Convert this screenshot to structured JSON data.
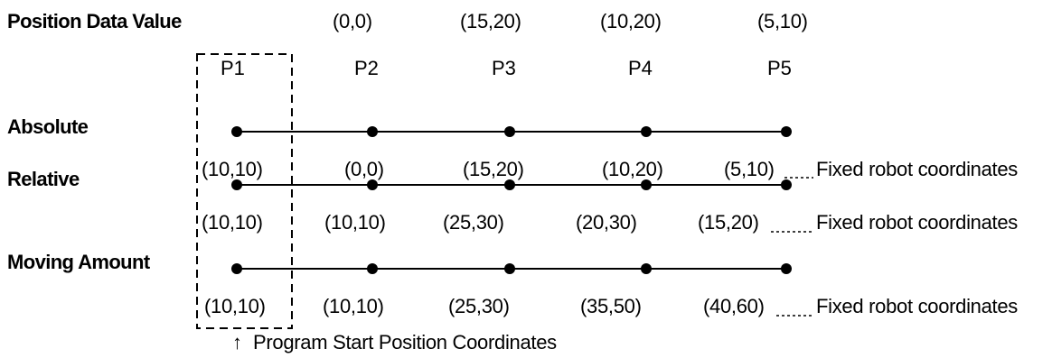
{
  "header": {
    "title": "Position Data Value",
    "values": [
      "(0,0)",
      "(15,20)",
      "(10,20)",
      "(5,10)"
    ]
  },
  "points": [
    "P1",
    "P2",
    "P3",
    "P4",
    "P5"
  ],
  "rows": [
    {
      "label": "Absolute",
      "coords": [
        "(10,10)",
        "(0,0)",
        "(15,20)",
        "(10,20)",
        "(5,10)"
      ],
      "note": "Fixed robot coordinates"
    },
    {
      "label": "Relative",
      "coords": [
        "(10,10)",
        "(10,10)",
        "(25,30)",
        "(20,30)",
        "(15,20)"
      ],
      "note": "Fixed robot coordinates"
    },
    {
      "label": "Moving Amount",
      "coords": [
        "(10,10)",
        "(10,10)",
        "(25,30)",
        "(35,50)",
        "(40,60)"
      ],
      "note": "Fixed robot coordinates"
    }
  ],
  "footer": {
    "arrow": "↑",
    "caption": "Program Start Position Coordinates"
  }
}
